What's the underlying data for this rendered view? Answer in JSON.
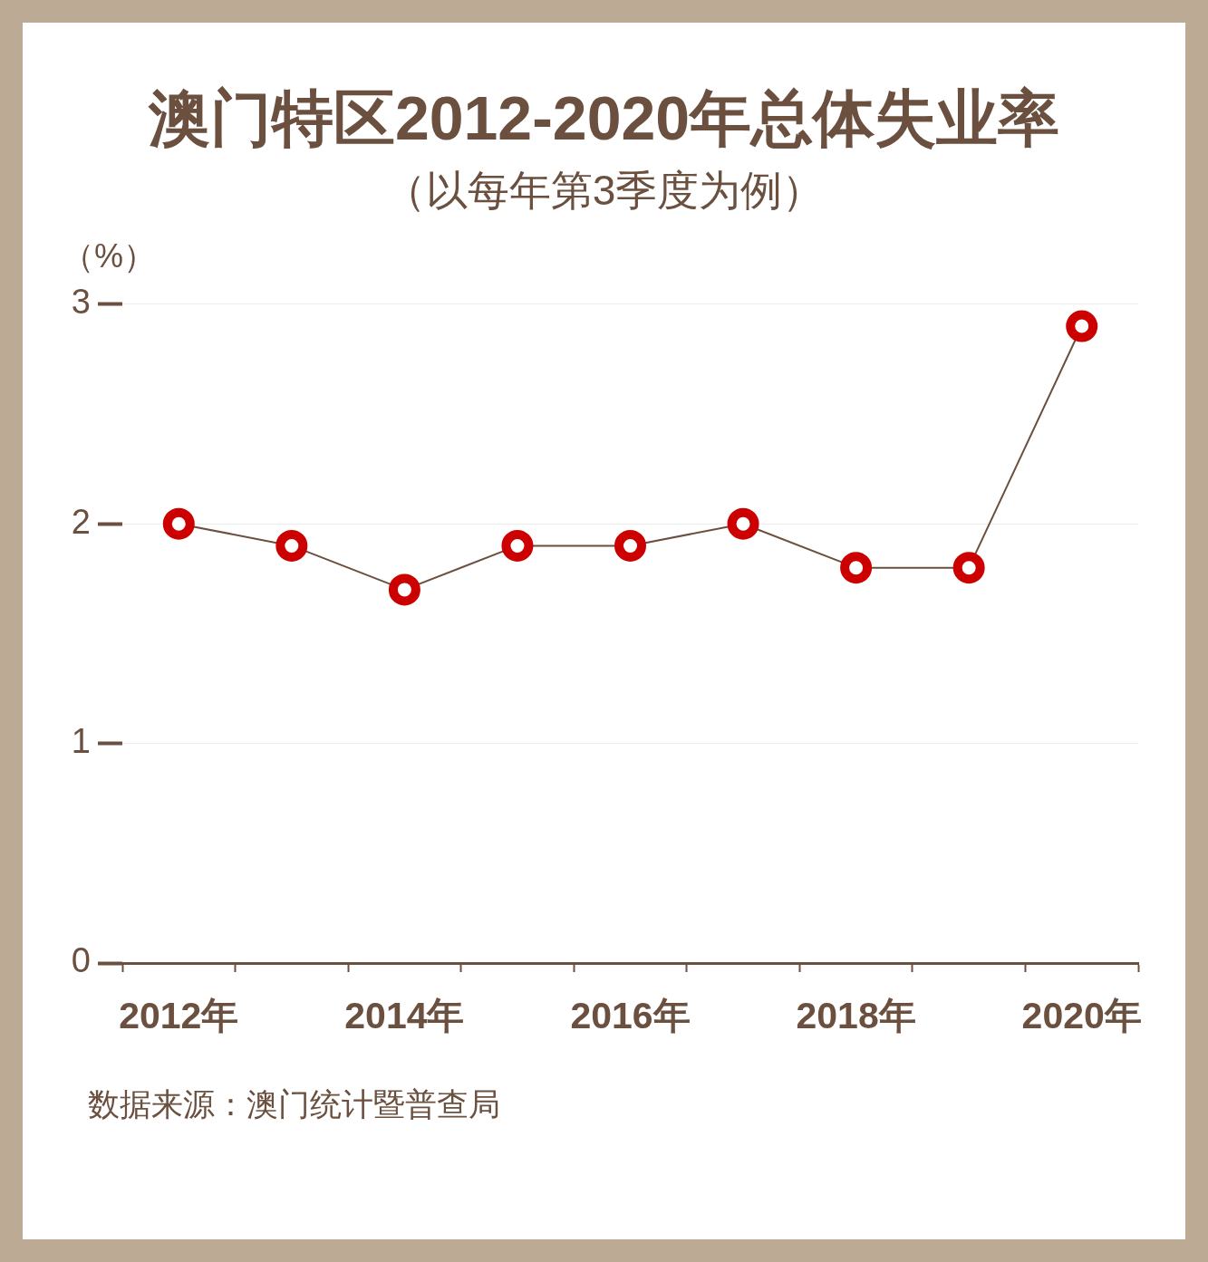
{
  "chart_data": {
    "type": "line",
    "title": "澳门特区2012-2020年总体失业率",
    "subtitle": "（以每年第3季度为例）",
    "ylabel": "（%）",
    "annotations": [
      "数据来源：澳门统计暨普查局"
    ],
    "categories": [
      "2012年",
      null,
      "2014年",
      null,
      "2016年",
      null,
      "2018年",
      null,
      "2020年"
    ],
    "series": [
      {
        "color": "#6b4f3f",
        "colors": [
          "#cc0000",
          "#cc0000",
          "#cc0000",
          "#cc0000",
          "#cc0000",
          "#cc0000",
          "#cc0000",
          "#cc0000",
          "#cc0000"
        ],
        "values": [
          2,
          1.9,
          1.7,
          1.9,
          1.9,
          2,
          1.8,
          1.8,
          2.9
        ]
      }
    ],
    "ylim": [
      0,
      3
    ],
    "yticks": [
      0,
      1,
      2,
      3
    ],
    "grid": "y",
    "marker": "circle",
    "line_style": "solid"
  }
}
